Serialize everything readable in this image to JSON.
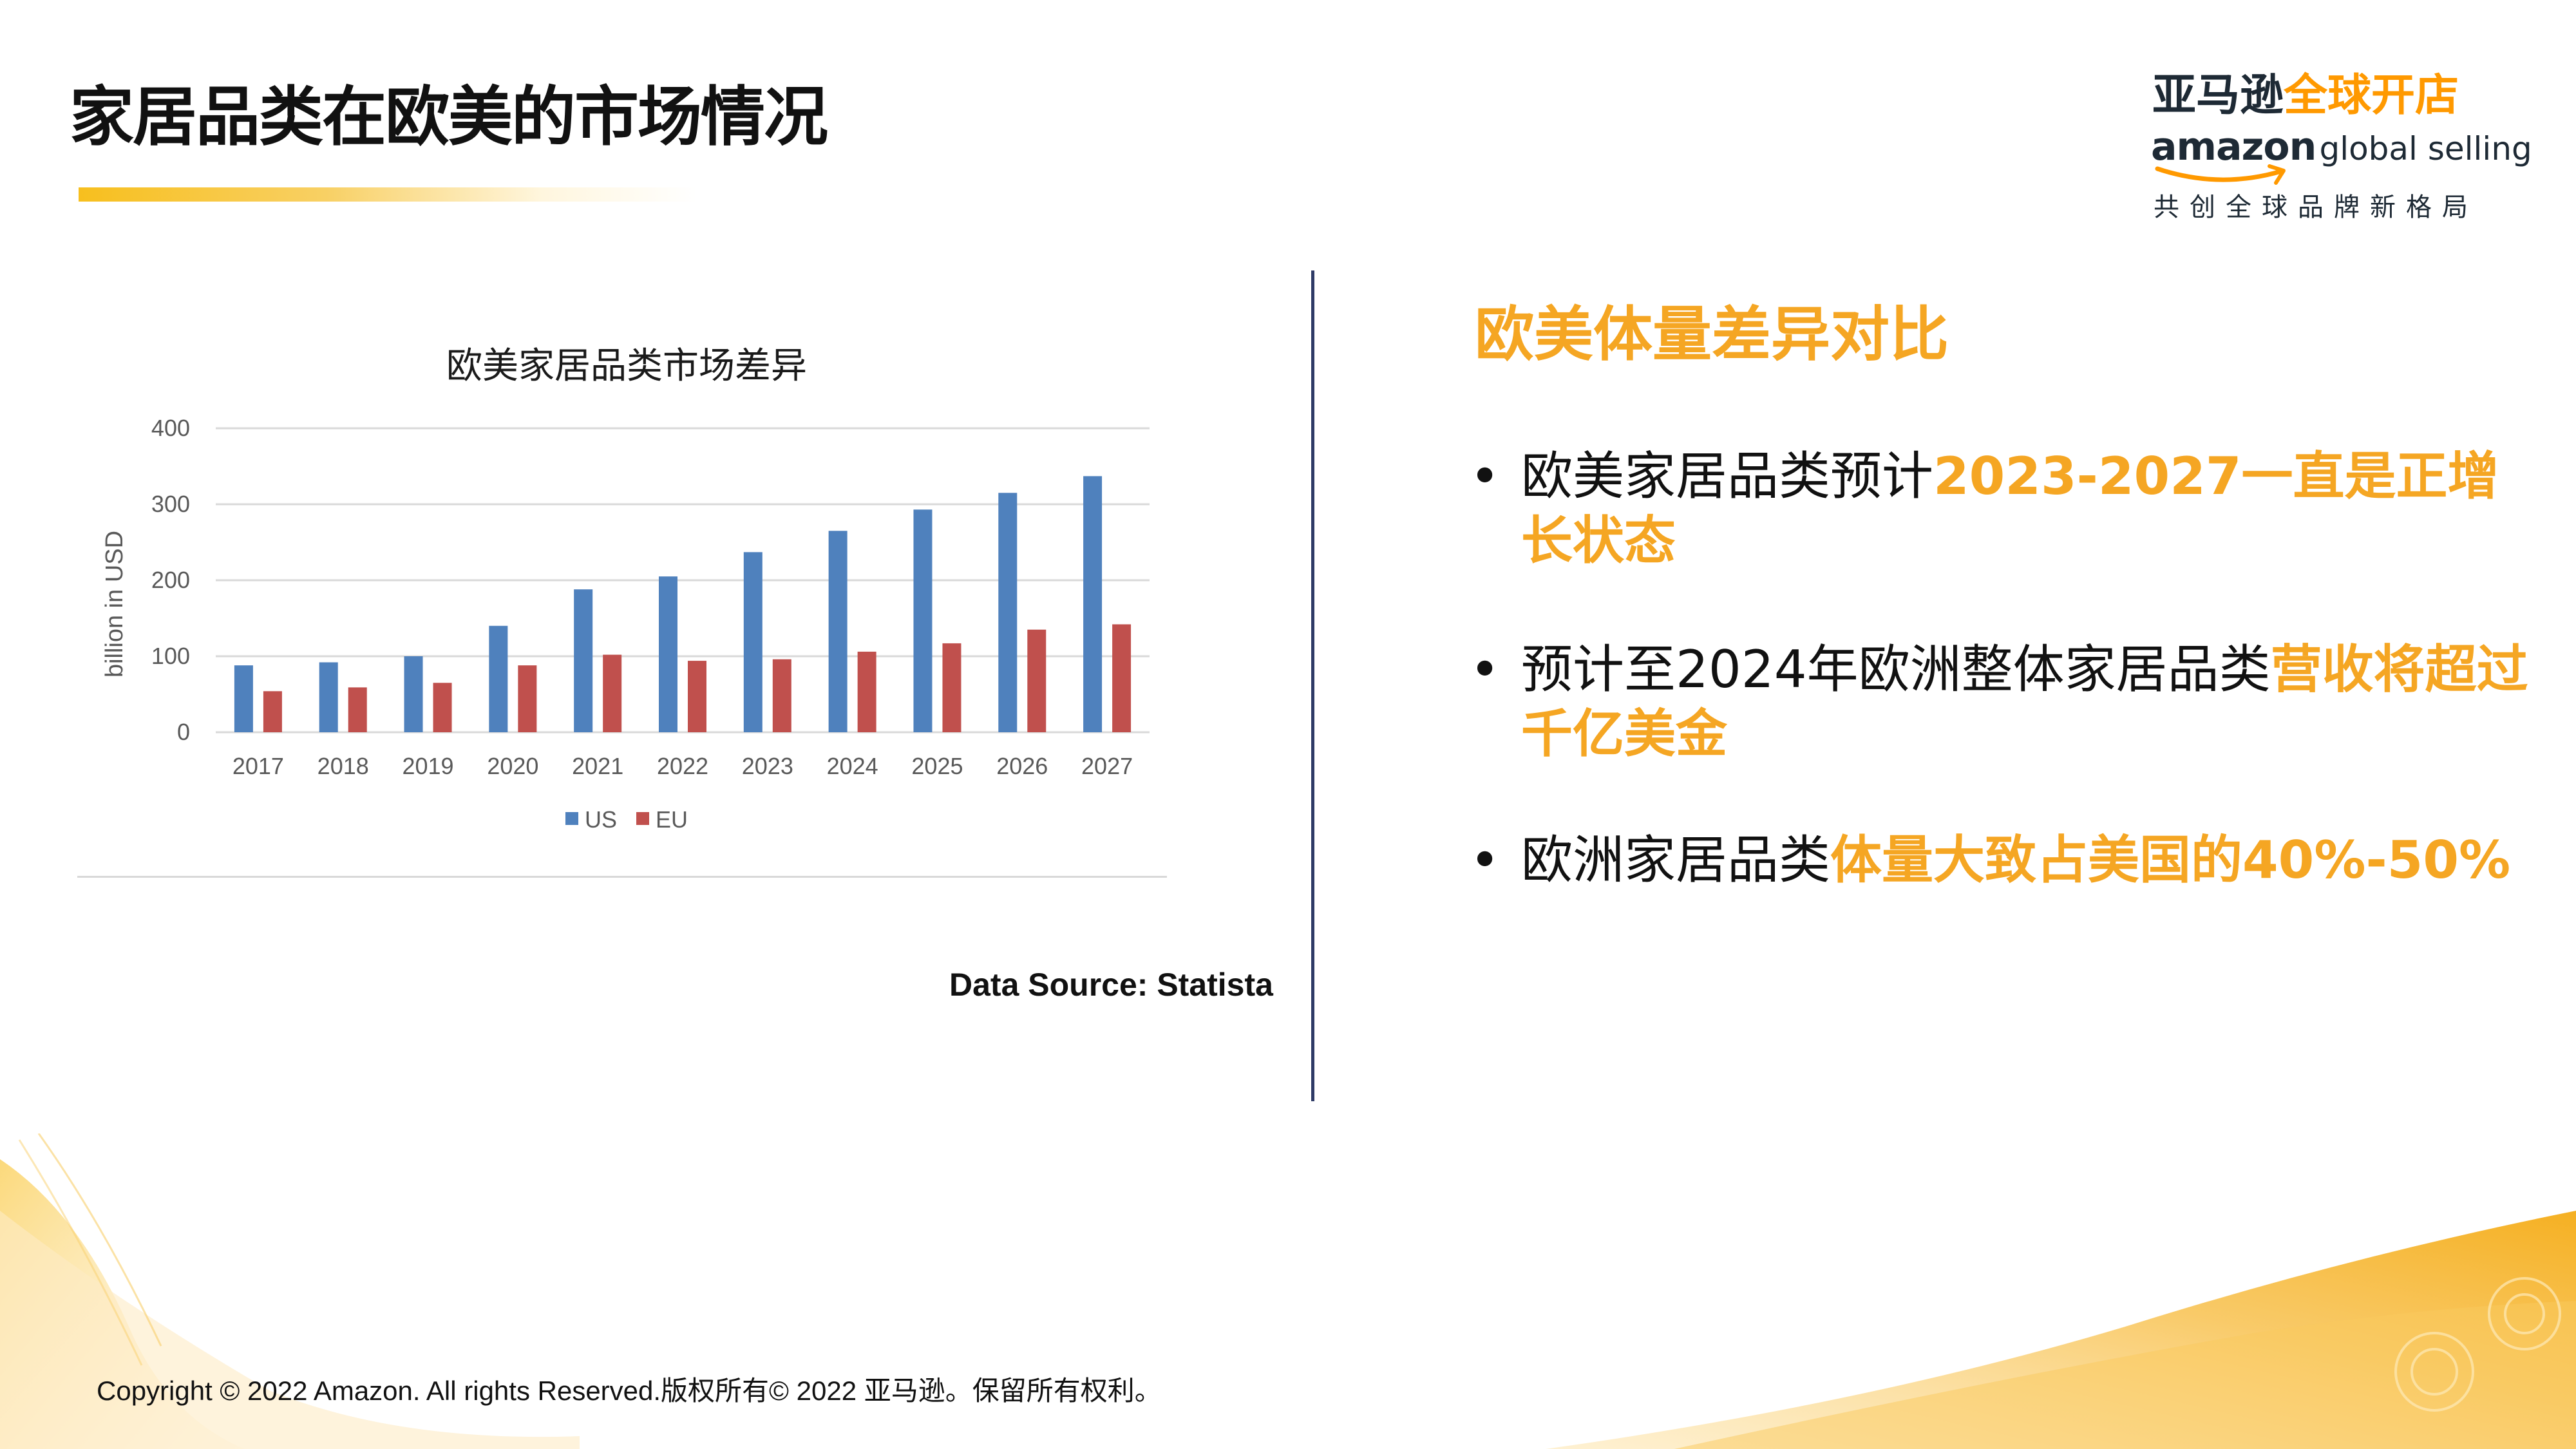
{
  "header": {
    "title": "家居品类在欧美的市场情况"
  },
  "logo": {
    "cn_dark": "亚马逊",
    "cn_orange": "全球开店",
    "amazon": "amazon",
    "global_selling": "global selling",
    "slogan": "共创全球品牌新格局",
    "colors": {
      "dark": "#1e2a35",
      "orange": "#ff9900"
    }
  },
  "chart_data": {
    "type": "bar",
    "title": "欧美家居品类市场差异",
    "xlabel": "",
    "ylabel": "billion in USD",
    "categories": [
      "2017",
      "2018",
      "2019",
      "2020",
      "2021",
      "2022",
      "2023",
      "2024",
      "2025",
      "2026",
      "2027"
    ],
    "series": [
      {
        "name": "US",
        "color": "#4f81bd",
        "values": [
          88,
          92,
          100,
          140,
          188,
          205,
          237,
          265,
          293,
          315,
          337
        ]
      },
      {
        "name": "EU",
        "color": "#c0504d",
        "values": [
          54,
          59,
          65,
          88,
          102,
          94,
          96,
          106,
          117,
          135,
          142
        ]
      }
    ],
    "ylim": [
      0,
      400
    ],
    "yticks": [
      0,
      100,
      200,
      300,
      400
    ],
    "grid": true,
    "legend_position": "bottom"
  },
  "data_source": "Data Source: Statista",
  "comparison": {
    "heading": "欧美体量差异对比",
    "bullets": [
      {
        "plain": "欧美家居品类预计",
        "highlight": "2023-2027一直是正增长状态"
      },
      {
        "plain": "预计至2024年欧洲整体家居品类",
        "highlight": "营收将超过千亿美金"
      },
      {
        "plain": "欧洲家居品类",
        "highlight": "体量大致占美国的40%-50%"
      }
    ],
    "bullet_char": "•",
    "highlight_color": "#f5a623"
  },
  "footer": {
    "copyright": "Copyright © 2022 Amazon. All rights Reserved.版权所有© 2022 亚马逊。保留所有权利。"
  }
}
